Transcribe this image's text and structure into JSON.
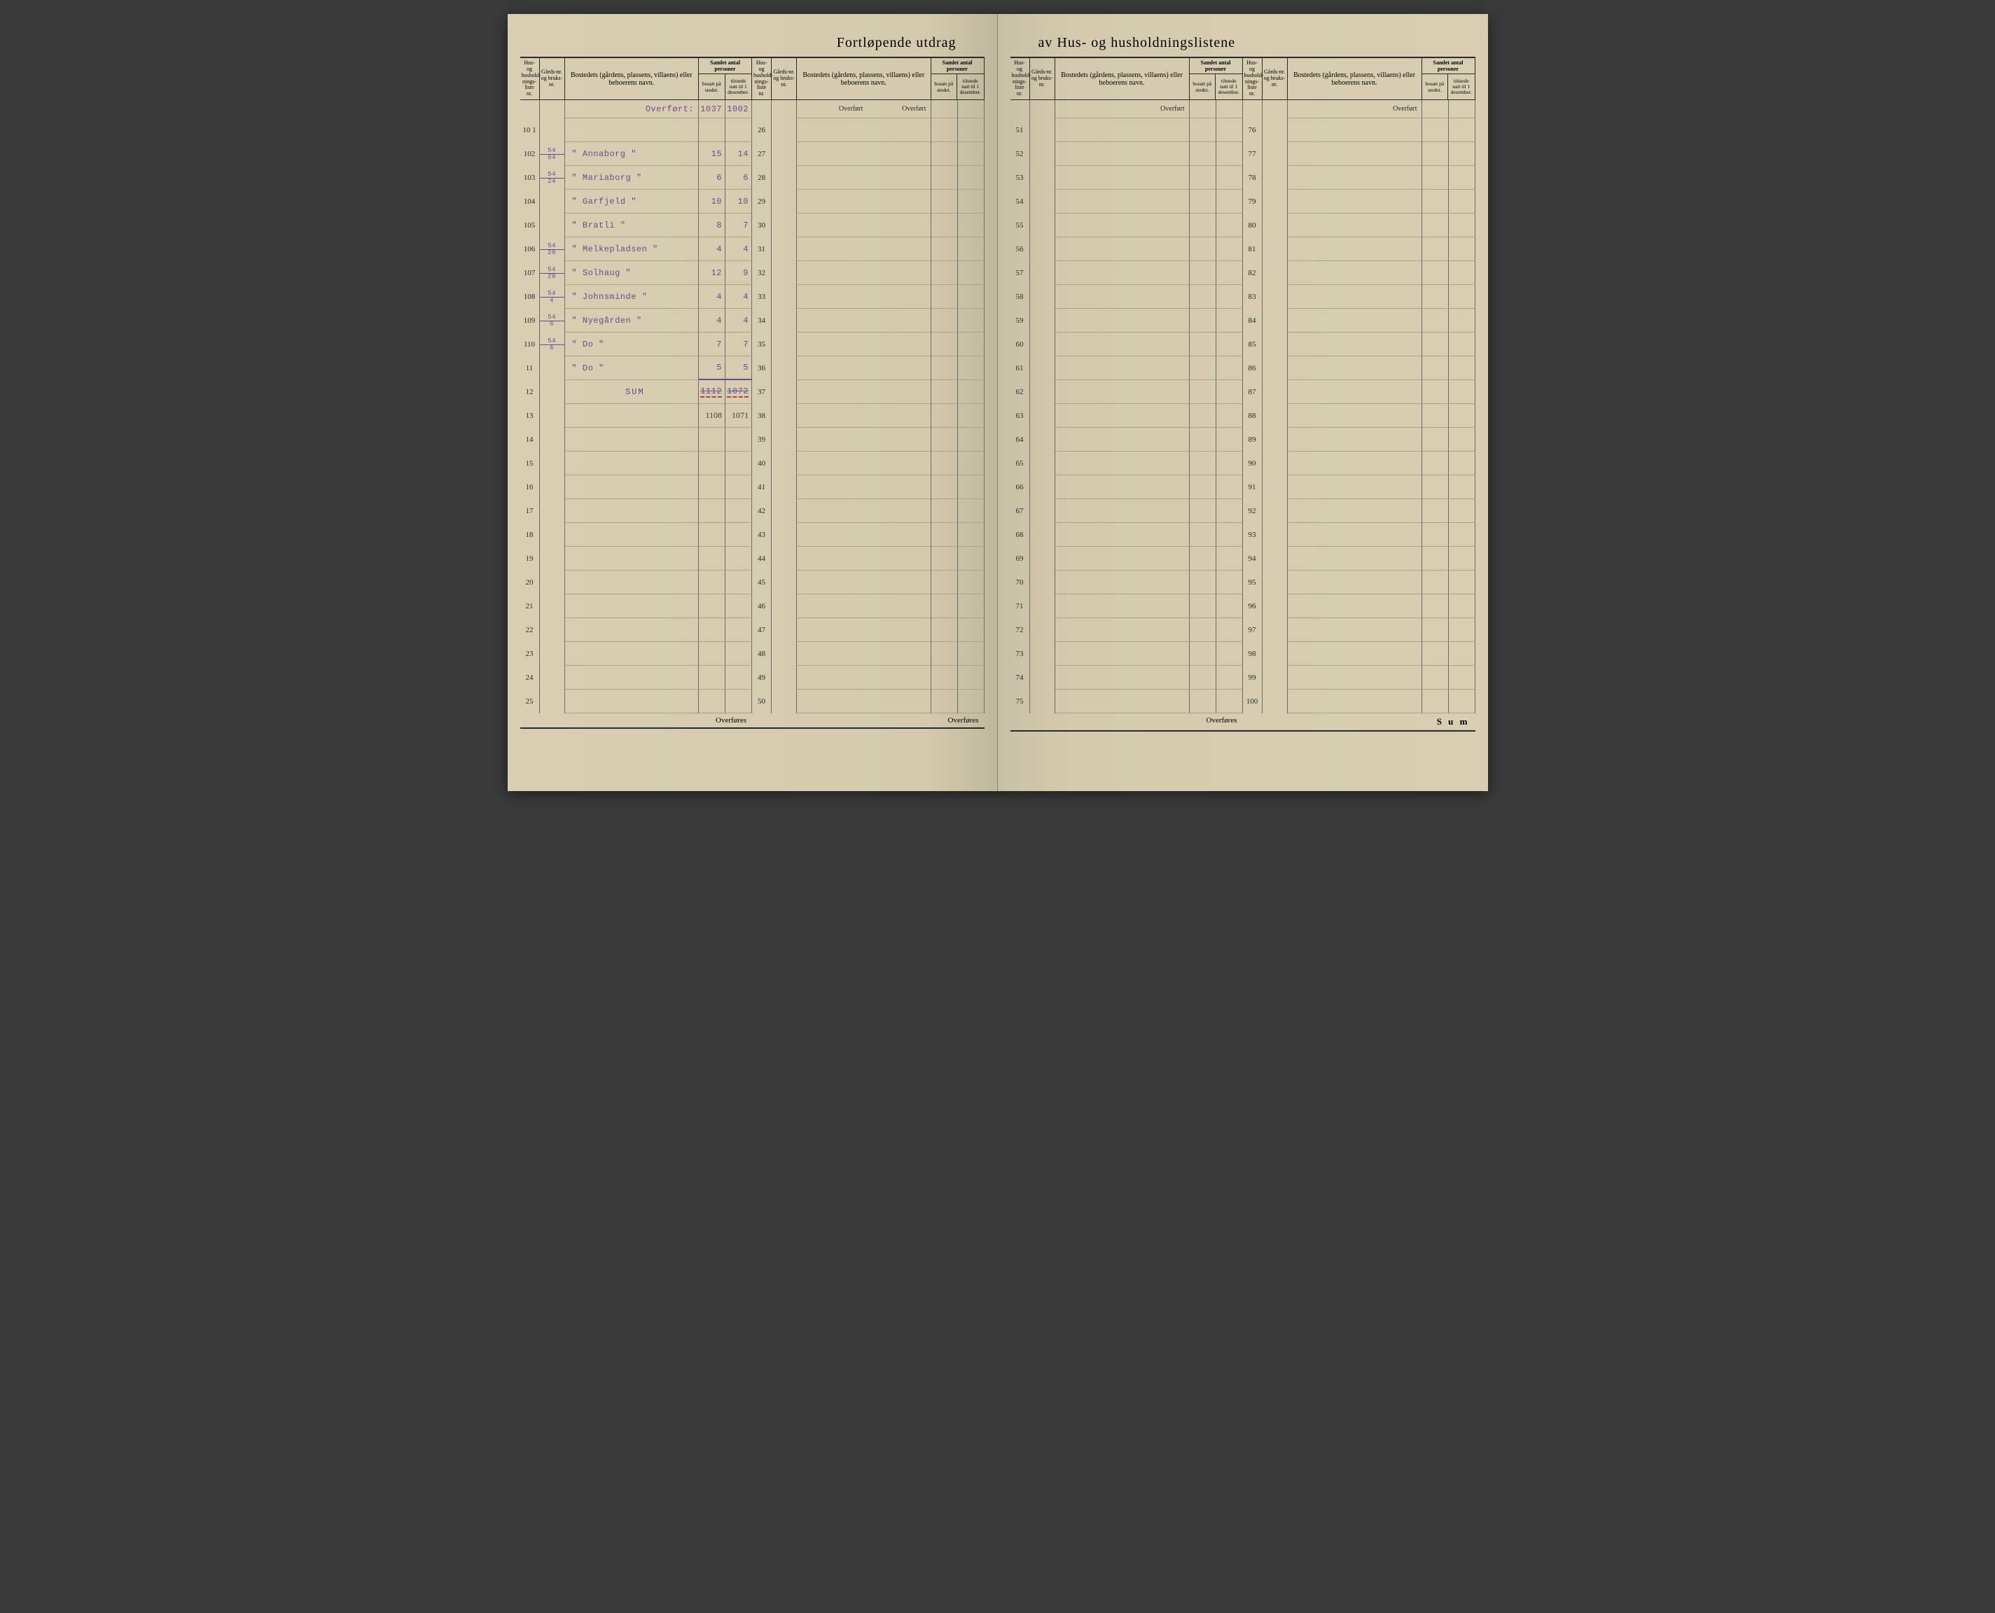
{
  "title_left": "Fortløpende utdrag",
  "title_right": "av Hus- og husholdningslistene",
  "headers": {
    "liste": "Hus- og hushold-nings-liste nr.",
    "gards": "Gårds-nr. og bruks-nr.",
    "bosted": "Bostedets (gårdens, plassens, villaens) eller beboerens navn.",
    "samlet": "Samlet antal personer",
    "bosatt": "bosatt på stedet.",
    "tilstede": "tilstede natt til 1 desember."
  },
  "overfort_label": "Overført",
  "overfores_label": "Overføres",
  "sum_footer_label": "S u m",
  "colors": {
    "paper": "#d6cdb0",
    "typed_ink": "#6b4a8f",
    "print_ink": "#2a2a2a",
    "handwritten_ink": "#3a3a3a",
    "red_pencil": "#b84040",
    "rule_line": "#6a6a6a",
    "faint_rule": "#aaa48e"
  },
  "left_page": {
    "col1": {
      "overfort": {
        "bosatt": "1037",
        "tilstede": "1002"
      },
      "rows": [
        {
          "nr": "10 1",
          "gards": "",
          "name": "",
          "bosatt": "",
          "tilstede": ""
        },
        {
          "nr": "102",
          "gards_top": "54",
          "gards_bot": "64",
          "name": "\" Annaborg \"",
          "bosatt": "15",
          "tilstede": "14"
        },
        {
          "nr": "103",
          "gards_top": "54",
          "gards_bot": "24",
          "name": "\" Mariaborg \"",
          "bosatt": "6",
          "tilstede": "6"
        },
        {
          "nr": "104",
          "gards": "",
          "name": "\" Garfjeld \"",
          "bosatt": "10",
          "tilstede": "10"
        },
        {
          "nr": "105",
          "gards": "",
          "name": "\" Bratli \"",
          "bosatt": "8",
          "tilstede": "7"
        },
        {
          "nr": "106",
          "gards_top": "54",
          "gards_bot": "28",
          "name": "\" Melkepladsen \"",
          "bosatt": "4",
          "tilstede": "4"
        },
        {
          "nr": "107",
          "gards_top": "54",
          "gards_bot": "28",
          "name": "\" Solhaug \"",
          "bosatt": "12",
          "tilstede": "9"
        },
        {
          "nr": "108",
          "gards_top": "54",
          "gards_bot": "4",
          "name": "\" Johnsminde \"",
          "bosatt": "4",
          "tilstede": "4"
        },
        {
          "nr": "109",
          "gards_top": "54",
          "gards_bot": "6",
          "name": "\" Nyegården \"",
          "bosatt": "4",
          "tilstede": "4"
        },
        {
          "nr": "110",
          "gards_top": "54",
          "gards_bot": "6",
          "name": "\"   Do   \"",
          "bosatt": "7",
          "tilstede": "7"
        },
        {
          "nr": "11",
          "gards": "",
          "name_extra": "\"   Do   \"",
          "bosatt_extra": "5",
          "tilstede_extra": "5"
        },
        {
          "nr": "12",
          "sum_row": true,
          "sum_label": "SUM",
          "sum_bosatt_strike": "1112",
          "sum_tilstede_strike": "1072"
        },
        {
          "nr": "13",
          "written_bosatt": "1108",
          "written_tilstede": "1071"
        },
        {
          "nr": "14"
        },
        {
          "nr": "15"
        },
        {
          "nr": "16"
        },
        {
          "nr": "17"
        },
        {
          "nr": "18"
        },
        {
          "nr": "19"
        },
        {
          "nr": "20"
        },
        {
          "nr": "21"
        },
        {
          "nr": "22"
        },
        {
          "nr": "23"
        },
        {
          "nr": "24"
        },
        {
          "nr": "25"
        }
      ]
    },
    "col2": {
      "rows": [
        {
          "nr": "26"
        },
        {
          "nr": "27"
        },
        {
          "nr": "28"
        },
        {
          "nr": "29"
        },
        {
          "nr": "30"
        },
        {
          "nr": "31"
        },
        {
          "nr": "32"
        },
        {
          "nr": "33"
        },
        {
          "nr": "34"
        },
        {
          "nr": "35"
        },
        {
          "nr": "36"
        },
        {
          "nr": "37"
        },
        {
          "nr": "38"
        },
        {
          "nr": "39"
        },
        {
          "nr": "40"
        },
        {
          "nr": "41"
        },
        {
          "nr": "42"
        },
        {
          "nr": "43"
        },
        {
          "nr": "44"
        },
        {
          "nr": "45"
        },
        {
          "nr": "46"
        },
        {
          "nr": "47"
        },
        {
          "nr": "48"
        },
        {
          "nr": "49"
        },
        {
          "nr": "50"
        }
      ]
    }
  },
  "right_page": {
    "col1": {
      "rows": [
        {
          "nr": "51"
        },
        {
          "nr": "52"
        },
        {
          "nr": "53"
        },
        {
          "nr": "54"
        },
        {
          "nr": "55"
        },
        {
          "nr": "56"
        },
        {
          "nr": "57"
        },
        {
          "nr": "58"
        },
        {
          "nr": "59"
        },
        {
          "nr": "60"
        },
        {
          "nr": "61"
        },
        {
          "nr": "62"
        },
        {
          "nr": "63"
        },
        {
          "nr": "64"
        },
        {
          "nr": "65"
        },
        {
          "nr": "66"
        },
        {
          "nr": "67"
        },
        {
          "nr": "68"
        },
        {
          "nr": "69"
        },
        {
          "nr": "70"
        },
        {
          "nr": "71"
        },
        {
          "nr": "72"
        },
        {
          "nr": "73"
        },
        {
          "nr": "74"
        },
        {
          "nr": "75"
        }
      ]
    },
    "col2": {
      "rows": [
        {
          "nr": "76"
        },
        {
          "nr": "77"
        },
        {
          "nr": "78"
        },
        {
          "nr": "79"
        },
        {
          "nr": "80"
        },
        {
          "nr": "81"
        },
        {
          "nr": "82"
        },
        {
          "nr": "83"
        },
        {
          "nr": "84"
        },
        {
          "nr": "85"
        },
        {
          "nr": "86"
        },
        {
          "nr": "87"
        },
        {
          "nr": "88"
        },
        {
          "nr": "89"
        },
        {
          "nr": "90"
        },
        {
          "nr": "91"
        },
        {
          "nr": "92"
        },
        {
          "nr": "93"
        },
        {
          "nr": "94"
        },
        {
          "nr": "95"
        },
        {
          "nr": "96"
        },
        {
          "nr": "97"
        },
        {
          "nr": "98"
        },
        {
          "nr": "99"
        },
        {
          "nr": "100"
        }
      ]
    }
  }
}
